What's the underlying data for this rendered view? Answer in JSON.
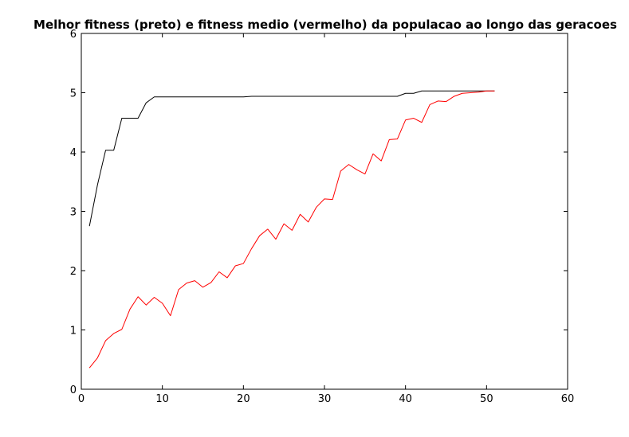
{
  "chart_data": {
    "type": "line",
    "title": "Melhor fitness (preto) e fitness medio (vermelho) da populacao ao longo das geracoes",
    "xlabel": "",
    "ylabel": "",
    "xlim": [
      0,
      60
    ],
    "ylim": [
      0,
      6
    ],
    "xticks": [
      0,
      10,
      20,
      30,
      40,
      50,
      60
    ],
    "yticks": [
      0,
      1,
      2,
      3,
      4,
      5,
      6
    ],
    "grid": false,
    "legend": "none",
    "x": [
      1,
      2,
      3,
      4,
      5,
      6,
      7,
      8,
      9,
      10,
      11,
      12,
      13,
      14,
      15,
      16,
      17,
      18,
      19,
      20,
      21,
      22,
      23,
      24,
      25,
      26,
      27,
      28,
      29,
      30,
      31,
      32,
      33,
      34,
      35,
      36,
      37,
      38,
      39,
      40,
      41,
      42,
      43,
      44,
      45,
      46,
      47,
      48,
      49,
      50,
      51
    ],
    "series": [
      {
        "color": "#000000",
        "values": [
          2.75,
          3.45,
          4.03,
          4.03,
          4.57,
          4.57,
          4.57,
          4.83,
          4.93,
          4.93,
          4.93,
          4.93,
          4.93,
          4.93,
          4.93,
          4.93,
          4.93,
          4.93,
          4.93,
          4.93,
          4.94,
          4.94,
          4.94,
          4.94,
          4.94,
          4.94,
          4.94,
          4.94,
          4.94,
          4.94,
          4.94,
          4.94,
          4.94,
          4.94,
          4.94,
          4.94,
          4.94,
          4.94,
          4.94,
          4.99,
          4.99,
          5.03,
          5.03,
          5.03,
          5.03,
          5.03,
          5.03,
          5.03,
          5.03,
          5.03,
          5.03
        ]
      },
      {
        "color": "#ff0000",
        "values": [
          0.36,
          0.53,
          0.82,
          0.94,
          1.01,
          1.35,
          1.56,
          1.42,
          1.55,
          1.45,
          1.24,
          1.68,
          1.79,
          1.83,
          1.72,
          1.8,
          1.98,
          1.88,
          2.08,
          2.12,
          2.37,
          2.59,
          2.7,
          2.53,
          2.79,
          2.68,
          2.95,
          2.82,
          3.07,
          3.21,
          3.2,
          3.68,
          3.79,
          3.7,
          3.63,
          3.97,
          3.85,
          4.21,
          4.22,
          4.54,
          4.57,
          4.5,
          4.8,
          4.86,
          4.85,
          4.94,
          4.99,
          5.0,
          5.01,
          5.03,
          5.03
        ]
      }
    ]
  }
}
